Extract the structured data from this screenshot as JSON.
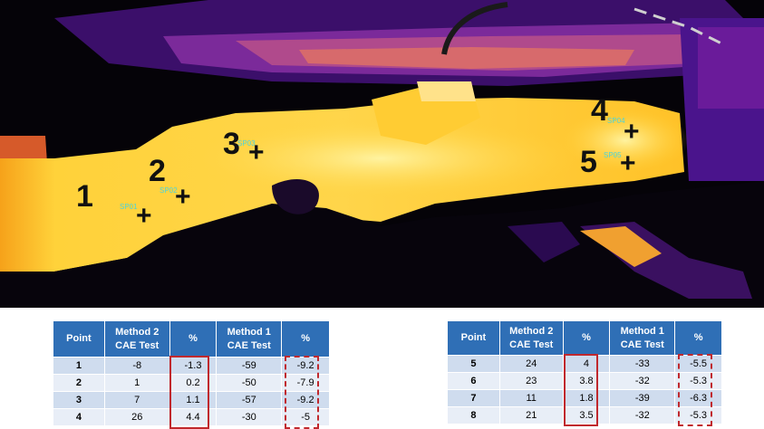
{
  "thermal_points": [
    {
      "label": "1"
    },
    {
      "label": "2",
      "spot": "SP02"
    },
    {
      "label": "3",
      "spot": "SP03"
    },
    {
      "label": "4",
      "spot": "SP04"
    },
    {
      "label": "5",
      "spot": "SP05"
    },
    {
      "spot": "SP01"
    }
  ],
  "crosshair": "+",
  "tables": [
    {
      "headers": [
        "Point",
        "Method 2 CAE Test",
        "%",
        "Method 1 CAE Test",
        "%"
      ],
      "rows": [
        [
          "1",
          "-8",
          "-1.3",
          "-59",
          "-9.2"
        ],
        [
          "2",
          "1",
          "0.2",
          "-50",
          "-7.9"
        ],
        [
          "3",
          "7",
          "1.1",
          "-57",
          "-9.2"
        ],
        [
          "4",
          "26",
          "4.4",
          "-30",
          "-5"
        ]
      ]
    },
    {
      "headers": [
        "Point",
        "Method 2 CAE Test",
        "%",
        "Method 1 CAE Test",
        "%"
      ],
      "rows": [
        [
          "5",
          "24",
          "4",
          "-33",
          "-5.5"
        ],
        [
          "6",
          "23",
          "3.8",
          "-32",
          "-5.3"
        ],
        [
          "7",
          "11",
          "1.8",
          "-39",
          "-6.3"
        ],
        [
          "8",
          "21",
          "3.5",
          "-32",
          "-5.3"
        ]
      ]
    }
  ],
  "colors": {
    "header_bg": "#2f6fb6",
    "row_odd": "#cfdcee",
    "row_even": "#e8eef7",
    "highlight_box": "#c0282d"
  }
}
